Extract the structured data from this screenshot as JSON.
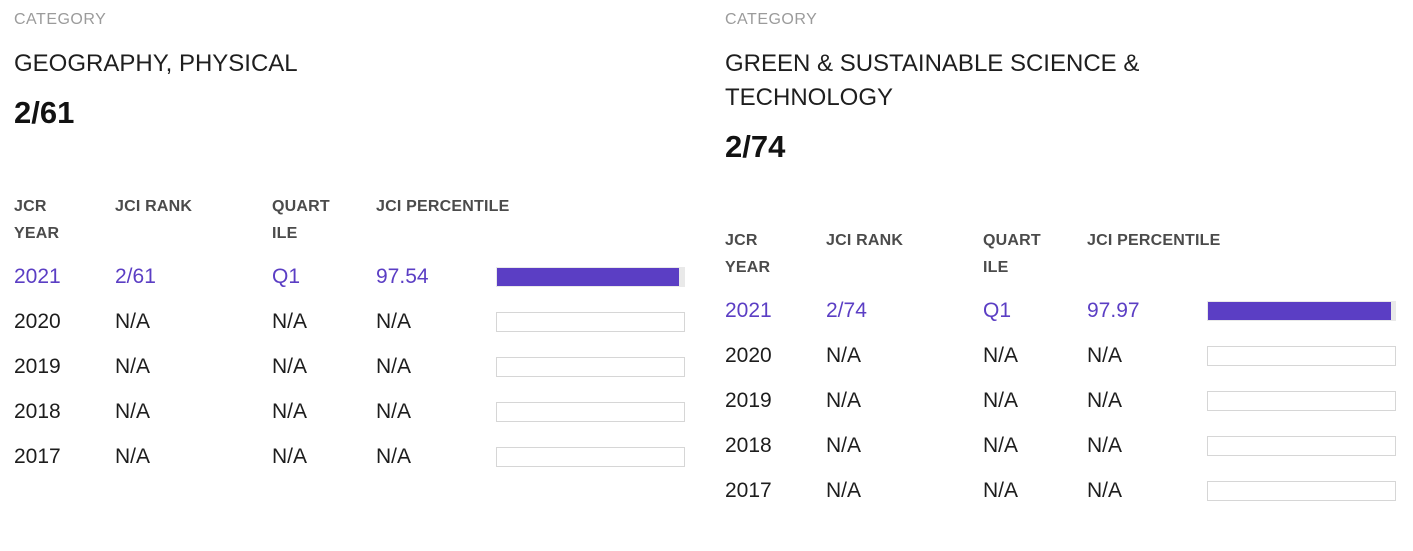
{
  "colors": {
    "accent": "#5B3EC4",
    "text": "#1D1D1D",
    "text_dark": "#1E1E1E",
    "text_darkest": "#121212",
    "header_text": "#4B4B4B",
    "muted_label": "#9B9B9B",
    "bar_border": "#D6D6D6",
    "bar_track_filled": "#E9E9E9",
    "background": "#FFFFFF"
  },
  "panels": [
    {
      "section_label": "CATEGORY",
      "category_name": "GEOGRAPHY, PHYSICAL",
      "rank": "2/61",
      "table": {
        "headers": {
          "year": [
            "JCR",
            "YEAR"
          ],
          "rank": [
            "JCI RANK"
          ],
          "quartile": [
            "QUART",
            "ILE"
          ],
          "percentile": [
            "JCI PERCENTILE"
          ]
        },
        "rows": [
          {
            "year": "2021",
            "rank": "2/61",
            "quartile": "Q1",
            "percentile": "97.54",
            "bar_percent": 97.54
          },
          {
            "year": "2020",
            "rank": "N/A",
            "quartile": "N/A",
            "percentile": "N/A",
            "bar_percent": 0
          },
          {
            "year": "2019",
            "rank": "N/A",
            "quartile": "N/A",
            "percentile": "N/A",
            "bar_percent": 0
          },
          {
            "year": "2018",
            "rank": "N/A",
            "quartile": "N/A",
            "percentile": "N/A",
            "bar_percent": 0
          },
          {
            "year": "2017",
            "rank": "N/A",
            "quartile": "N/A",
            "percentile": "N/A",
            "bar_percent": 0
          }
        ]
      }
    },
    {
      "section_label": "CATEGORY",
      "category_name": "GREEN & SUSTAINABLE SCIENCE & TECHNOLOGY",
      "rank": "2/74",
      "table": {
        "headers": {
          "year": [
            "JCR",
            "YEAR"
          ],
          "rank": [
            "JCI RANK"
          ],
          "quartile": [
            "QUART",
            "ILE"
          ],
          "percentile": [
            "JCI PERCENTILE"
          ]
        },
        "rows": [
          {
            "year": "2021",
            "rank": "2/74",
            "quartile": "Q1",
            "percentile": "97.97",
            "bar_percent": 97.97
          },
          {
            "year": "2020",
            "rank": "N/A",
            "quartile": "N/A",
            "percentile": "N/A",
            "bar_percent": 0
          },
          {
            "year": "2019",
            "rank": "N/A",
            "quartile": "N/A",
            "percentile": "N/A",
            "bar_percent": 0
          },
          {
            "year": "2018",
            "rank": "N/A",
            "quartile": "N/A",
            "percentile": "N/A",
            "bar_percent": 0
          },
          {
            "year": "2017",
            "rank": "N/A",
            "quartile": "N/A",
            "percentile": "N/A",
            "bar_percent": 0
          }
        ]
      }
    }
  ]
}
